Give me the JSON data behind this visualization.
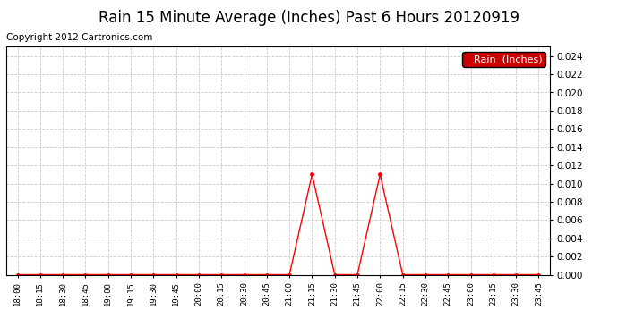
{
  "title": "Rain 15 Minute Average (Inches) Past 6 Hours 20120919",
  "copyright": "Copyright 2012 Cartronics.com",
  "legend_label": "Rain  (Inches)",
  "x_labels": [
    "18:00",
    "18:15",
    "18:30",
    "18:45",
    "19:00",
    "19:15",
    "19:30",
    "19:45",
    "20:00",
    "20:15",
    "20:30",
    "20:45",
    "21:00",
    "21:15",
    "21:30",
    "21:45",
    "22:00",
    "22:15",
    "22:30",
    "22:45",
    "23:00",
    "23:15",
    "23:30",
    "23:45"
  ],
  "y_values": [
    0.0,
    0.0,
    0.0,
    0.0,
    0.0,
    0.0,
    0.0,
    0.0,
    0.0,
    0.0,
    0.0,
    0.0,
    0.0,
    0.011,
    0.0,
    0.0,
    0.011,
    0.0,
    0.0,
    0.0,
    0.0,
    0.0,
    0.0,
    0.0
  ],
  "ylim": [
    0.0,
    0.025
  ],
  "yticks": [
    0.0,
    0.002,
    0.004,
    0.006,
    0.008,
    0.01,
    0.012,
    0.014,
    0.016,
    0.018,
    0.02,
    0.022,
    0.024
  ],
  "line_color": "#ff0000",
  "marker": "o",
  "marker_size": 2.5,
  "grid_color": "#cccccc",
  "background_color": "#ffffff",
  "title_fontsize": 12,
  "copyright_fontsize": 7.5,
  "legend_bg": "#cc0000",
  "legend_text_color": "#ffffff",
  "legend_fontsize": 8
}
